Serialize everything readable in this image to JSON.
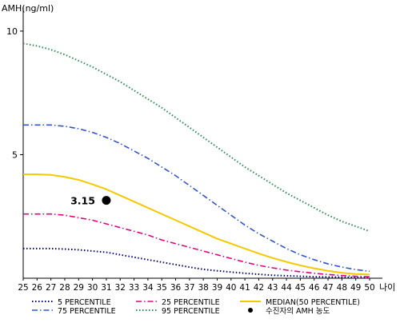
{
  "chart_data": {
    "type": "line",
    "ylabel": "AMH(ng/ml)",
    "xlabel": "나이",
    "xlim": [
      25,
      50
    ],
    "ylim": [
      0,
      11
    ],
    "x_ticks": [
      "25",
      "26",
      "27",
      "28",
      "29",
      "30",
      "31",
      "32",
      "33",
      "34",
      "35",
      "36",
      "37",
      "38",
      "39",
      "40",
      "41",
      "42",
      "43",
      "44",
      "45",
      "46",
      "47",
      "48",
      "49",
      "50"
    ],
    "y_ticks": [
      "5",
      "10"
    ],
    "x": [
      25,
      26,
      27,
      28,
      29,
      30,
      31,
      32,
      33,
      34,
      35,
      36,
      37,
      38,
      39,
      40,
      41,
      42,
      43,
      44,
      45,
      46,
      47,
      48,
      49,
      50
    ],
    "series": [
      {
        "name": "5 PERCENTILE",
        "color": "#000080",
        "dash": "dotted",
        "values": [
          1.2,
          1.2,
          1.2,
          1.18,
          1.15,
          1.1,
          1.05,
          0.95,
          0.85,
          0.75,
          0.65,
          0.55,
          0.45,
          0.36,
          0.3,
          0.25,
          0.2,
          0.16,
          0.12,
          0.1,
          0.08,
          0.06,
          0.05,
          0.04,
          0.03,
          0.03
        ]
      },
      {
        "name": "25 PERCENTILE",
        "color": "#e6007e",
        "dash": "dashdot",
        "values": [
          2.6,
          2.6,
          2.6,
          2.55,
          2.45,
          2.35,
          2.2,
          2.05,
          1.9,
          1.75,
          1.55,
          1.4,
          1.25,
          1.1,
          0.95,
          0.8,
          0.65,
          0.52,
          0.42,
          0.33,
          0.26,
          0.2,
          0.15,
          0.11,
          0.08,
          0.06
        ]
      },
      {
        "name": "MEDIAN(50 PERCENTILE)",
        "color": "#f5c800",
        "dash": "solid",
        "values": [
          4.2,
          4.2,
          4.18,
          4.1,
          3.98,
          3.8,
          3.6,
          3.35,
          3.1,
          2.85,
          2.6,
          2.35,
          2.1,
          1.85,
          1.6,
          1.4,
          1.2,
          1.0,
          0.82,
          0.66,
          0.52,
          0.4,
          0.3,
          0.22,
          0.17,
          0.15
        ]
      },
      {
        "name": "75 PERCENTILE",
        "color": "#3355cc",
        "dash": "dashdot",
        "values": [
          6.2,
          6.2,
          6.2,
          6.15,
          6.05,
          5.9,
          5.7,
          5.45,
          5.15,
          4.85,
          4.5,
          4.15,
          3.75,
          3.35,
          2.95,
          2.55,
          2.15,
          1.8,
          1.5,
          1.2,
          0.95,
          0.75,
          0.58,
          0.45,
          0.35,
          0.28
        ]
      },
      {
        "name": "95 PERCENTILE",
        "color": "#2e8b57",
        "dash": "dotted",
        "values": [
          9.5,
          9.4,
          9.25,
          9.05,
          8.8,
          8.55,
          8.25,
          7.95,
          7.6,
          7.25,
          6.9,
          6.5,
          6.1,
          5.7,
          5.3,
          4.9,
          4.5,
          4.15,
          3.8,
          3.45,
          3.15,
          2.85,
          2.55,
          2.3,
          2.1,
          1.9
        ]
      }
    ],
    "highlight_point": {
      "name": "수진자의 AMH 농도",
      "x": 31,
      "y": 3.15,
      "label": "3.15",
      "color": "#000000"
    },
    "grid": false,
    "legend_position": "bottom"
  }
}
